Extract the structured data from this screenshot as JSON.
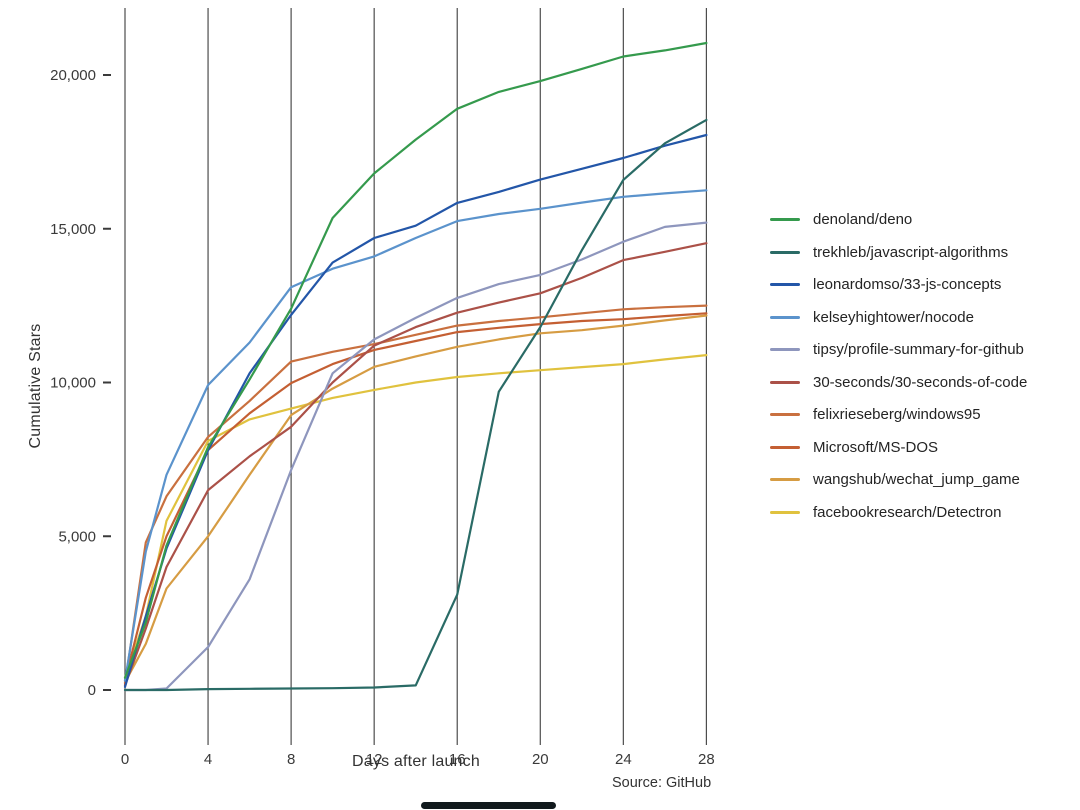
{
  "page": {
    "background": "#ffffff"
  },
  "axes": {
    "y_title": "Cumulative Stars",
    "x_title": "Days after launch"
  },
  "source_note": "Source: GitHub",
  "colors": {
    "gridline": "#4d4d4d",
    "tick_text": "#3a3a3a",
    "axis_text": "#333333",
    "bottom_bar": "#11191d"
  },
  "chart_data": {
    "type": "line",
    "title": "",
    "xlabel": "Days after launch",
    "ylabel": "Cumulative Stars",
    "source": "Source: GitHub",
    "grid": "vertical-only",
    "legend_position": "right",
    "xlim": [
      0,
      28
    ],
    "ylim": [
      0,
      21500
    ],
    "x_ticks": [
      0,
      4,
      8,
      12,
      16,
      20,
      24,
      28
    ],
    "y_ticks": [
      {
        "value": 0,
        "label": "0"
      },
      {
        "value": 5000,
        "label": "5,000"
      },
      {
        "value": 10000,
        "label": "10,000"
      },
      {
        "value": 15000,
        "label": "15,000"
      },
      {
        "value": 20000,
        "label": "20,000"
      }
    ],
    "x": [
      0,
      1,
      2,
      4,
      6,
      8,
      10,
      12,
      14,
      16,
      18,
      20,
      22,
      24,
      26,
      28
    ],
    "series": [
      {
        "name": "denoland/deno",
        "color": "#359a4d",
        "values": [
          400,
          2200,
          4700,
          7900,
          10100,
          12400,
          15350,
          16800,
          17900,
          18900,
          19450,
          19800,
          20200,
          20600,
          20800,
          21040
        ]
      },
      {
        "name": "trekhleb/javascript-algorithms",
        "color": "#2a6b66",
        "values": [
          0,
          0,
          0,
          30,
          40,
          50,
          60,
          80,
          150,
          3100,
          9700,
          11800,
          14300,
          16590,
          17780,
          18540
        ]
      },
      {
        "name": "leonardomso/33-js-concepts",
        "color": "#2356a8",
        "values": [
          100,
          2400,
          4600,
          7800,
          10300,
          12200,
          13900,
          14700,
          15100,
          15840,
          16200,
          16600,
          16950,
          17300,
          17700,
          18050
        ]
      },
      {
        "name": "kelseyhightower/nocode",
        "color": "#5b93cc",
        "values": [
          300,
          4500,
          7000,
          9920,
          11300,
          13100,
          13700,
          14100,
          14700,
          15250,
          15480,
          15650,
          15850,
          16040,
          16150,
          16250
        ]
      },
      {
        "name": "tipsy/profile-summary-for-github",
        "color": "#8e96bd",
        "values": [
          0,
          0,
          50,
          1400,
          3600,
          7150,
          10300,
          11400,
          12100,
          12750,
          13200,
          13500,
          14000,
          14580,
          15060,
          15200
        ]
      },
      {
        "name": "30-seconds/30-seconds-of-code",
        "color": "#ab5148",
        "values": [
          150,
          2000,
          4000,
          6500,
          7600,
          8560,
          10000,
          11200,
          11800,
          12270,
          12600,
          12900,
          13400,
          13980,
          14250,
          14530
        ]
      },
      {
        "name": "felixrieseberg/windows95",
        "color": "#c9703f",
        "values": [
          200,
          4800,
          6300,
          8230,
          9400,
          10680,
          11000,
          11250,
          11550,
          11850,
          12000,
          12120,
          12250,
          12380,
          12450,
          12500
        ]
      },
      {
        "name": "Microsoft/MS-DOS",
        "color": "#c45f33",
        "values": [
          300,
          3000,
          5000,
          7800,
          9000,
          9980,
          10600,
          11060,
          11350,
          11640,
          11780,
          11900,
          12000,
          12060,
          12160,
          12250
        ]
      },
      {
        "name": "wangshub/wechat_jump_game",
        "color": "#d69c43",
        "values": [
          250,
          1500,
          3300,
          5000,
          7000,
          8940,
          9800,
          10510,
          10850,
          11160,
          11400,
          11600,
          11700,
          11850,
          12020,
          12180
        ]
      },
      {
        "name": "facebookresearch/Detectron",
        "color": "#e0c23e",
        "values": [
          400,
          2400,
          5500,
          8100,
          8800,
          9150,
          9500,
          9760,
          10000,
          10180,
          10300,
          10400,
          10500,
          10600,
          10750,
          10890
        ]
      }
    ]
  }
}
